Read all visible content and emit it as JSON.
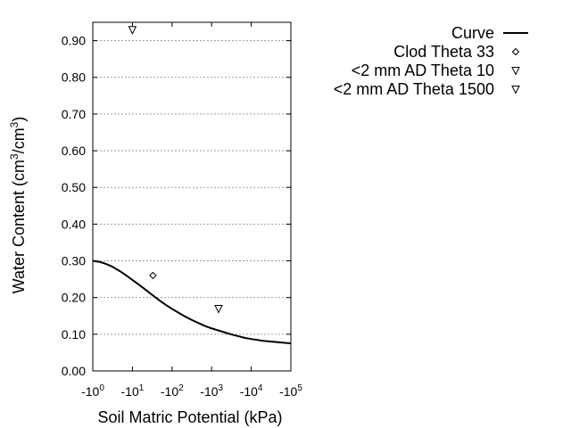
{
  "chart_data": {
    "type": "scatter",
    "xlabel": "Soil Matric Potential (kPa)",
    "ylabel": {
      "prefix": "Water Content (cm",
      "sup1": "3",
      "mid": "/cm",
      "sup2": "3",
      "suffix": ")"
    },
    "x_scale": "log",
    "x_ticks": [
      {
        "base": "-10",
        "exp": "0",
        "value": 1
      },
      {
        "base": "-10",
        "exp": "1",
        "value": 10
      },
      {
        "base": "-10",
        "exp": "2",
        "value": 100
      },
      {
        "base": "-10",
        "exp": "3",
        "value": 1000
      },
      {
        "base": "-10",
        "exp": "4",
        "value": 10000
      },
      {
        "base": "-10",
        "exp": "5",
        "value": 100000
      }
    ],
    "xlim": [
      1,
      100000
    ],
    "ylim": [
      0,
      0.95
    ],
    "y_ticks": [
      {
        "label": "0.00",
        "value": 0.0
      },
      {
        "label": "0.10",
        "value": 0.1
      },
      {
        "label": "0.20",
        "value": 0.2
      },
      {
        "label": "0.30",
        "value": 0.3
      },
      {
        "label": "0.40",
        "value": 0.4
      },
      {
        "label": "0.50",
        "value": 0.5
      },
      {
        "label": "0.60",
        "value": 0.6
      },
      {
        "label": "0.70",
        "value": 0.7
      },
      {
        "label": "0.80",
        "value": 0.8
      },
      {
        "label": "0.90",
        "value": 0.9
      }
    ],
    "grid": "horizontal-dotted",
    "legend_position": "right",
    "series": [
      {
        "name": "Curve",
        "kind": "line",
        "color": "#000000",
        "points": [
          [
            1,
            0.3
          ],
          [
            1.5,
            0.297
          ],
          [
            2,
            0.293
          ],
          [
            3,
            0.285
          ],
          [
            5,
            0.271
          ],
          [
            7,
            0.26
          ],
          [
            10,
            0.248
          ],
          [
            15,
            0.234
          ],
          [
            20,
            0.224
          ],
          [
            30,
            0.209
          ],
          [
            50,
            0.191
          ],
          [
            70,
            0.18
          ],
          [
            100,
            0.169
          ],
          [
            150,
            0.158
          ],
          [
            200,
            0.15
          ],
          [
            300,
            0.14
          ],
          [
            500,
            0.129
          ],
          [
            700,
            0.122
          ],
          [
            1000,
            0.116
          ],
          [
            1500,
            0.11
          ],
          [
            2000,
            0.106
          ],
          [
            3000,
            0.1
          ],
          [
            5000,
            0.094
          ],
          [
            7000,
            0.09
          ],
          [
            10000,
            0.087
          ],
          [
            20000,
            0.082
          ],
          [
            50000,
            0.078
          ],
          [
            100000,
            0.075
          ]
        ]
      },
      {
        "name": "Clod Theta 33",
        "kind": "marker",
        "marker": "diamond",
        "points": [
          [
            33,
            0.26
          ]
        ]
      },
      {
        "name": "<2 mm AD Theta 10",
        "kind": "marker",
        "marker": "triangle-down",
        "points": [
          [
            10,
            0.93
          ]
        ]
      },
      {
        "name": "<2 mm AD Theta 1500",
        "kind": "marker",
        "marker": "triangle-down",
        "points": [
          [
            1500,
            0.17
          ]
        ]
      }
    ]
  }
}
